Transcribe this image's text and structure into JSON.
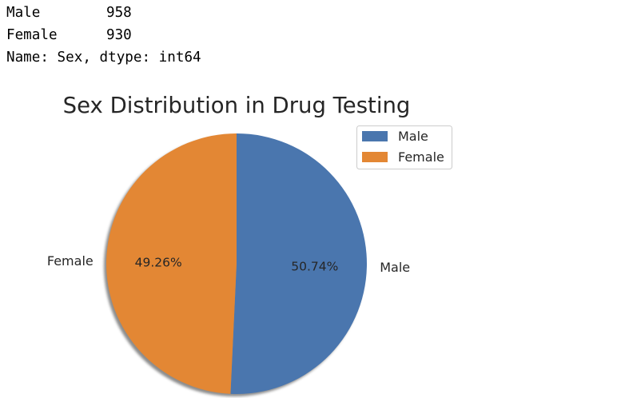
{
  "console": {
    "rows": [
      {
        "key": "Male",
        "value": "958"
      },
      {
        "key": "Female",
        "value": "930"
      }
    ],
    "footer": "Name: Sex, dtype: int64"
  },
  "chart_data": {
    "type": "pie",
    "title": "Sex Distribution in Drug Testing",
    "categories": [
      "Male",
      "Female"
    ],
    "values": [
      958,
      930
    ],
    "percent_labels": [
      "50.74%",
      "49.26%"
    ],
    "colors": [
      "#4a76ae",
      "#e38734"
    ],
    "legend": {
      "placement": "top-right",
      "entries": [
        "Male",
        "Female"
      ]
    },
    "shadow": true,
    "start_angle_deg": 90,
    "direction": "clockwise"
  }
}
